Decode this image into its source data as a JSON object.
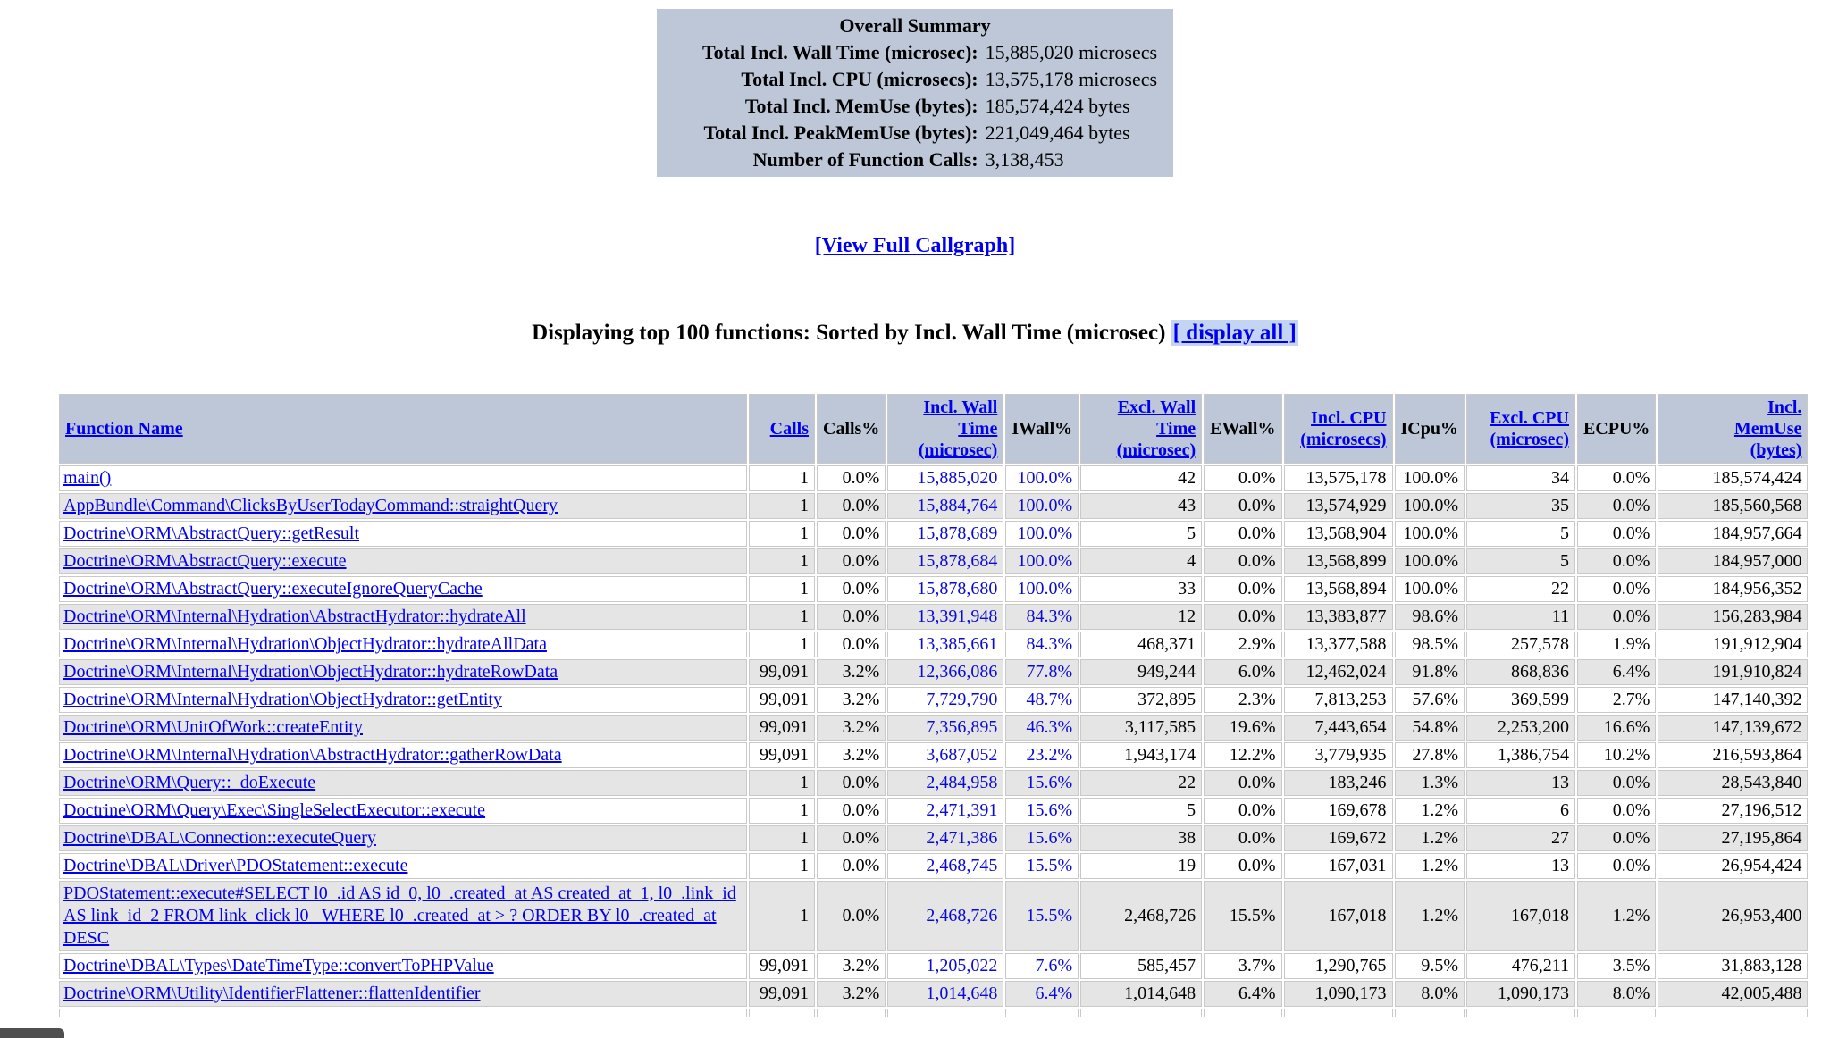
{
  "summary": {
    "title": "Overall Summary",
    "rows": [
      {
        "label": "Total Incl. Wall Time (microsec):",
        "value": "15,885,020 microsecs"
      },
      {
        "label": "Total Incl. CPU (microsecs):",
        "value": "13,575,178 microsecs"
      },
      {
        "label": "Total Incl. MemUse (bytes):",
        "value": "185,574,424 bytes"
      },
      {
        "label": "Total Incl. PeakMemUse (bytes):",
        "value": "221,049,464 bytes"
      },
      {
        "label": "Number of Function Calls:",
        "value": "3,138,453"
      }
    ]
  },
  "callgraph_link": "[View Full Callgraph]",
  "listing": {
    "heading": "Displaying top 100 functions: Sorted by Incl. Wall Time (microsec)",
    "display_all_label": "[ display all ]"
  },
  "table": {
    "columns": [
      {
        "label": "Function Name",
        "link": true,
        "align": "left",
        "sorted": false
      },
      {
        "label": "Calls",
        "link": true,
        "align": "right",
        "sorted": false
      },
      {
        "label": "Calls%",
        "link": false,
        "align": "right",
        "sorted": false
      },
      {
        "label": "Incl. Wall Time\n(microsec)",
        "link": true,
        "align": "right",
        "sorted": true
      },
      {
        "label": "IWall%",
        "link": false,
        "align": "right",
        "sorted": true
      },
      {
        "label": "Excl. Wall Time\n(microsec)",
        "link": true,
        "align": "right",
        "sorted": false
      },
      {
        "label": "EWall%",
        "link": false,
        "align": "right",
        "sorted": false
      },
      {
        "label": "Incl. CPU\n(microsecs)",
        "link": true,
        "align": "right",
        "sorted": false
      },
      {
        "label": "ICpu%",
        "link": false,
        "align": "right",
        "sorted": false
      },
      {
        "label": "Excl. CPU\n(microsec)",
        "link": true,
        "align": "right",
        "sorted": false
      },
      {
        "label": "ECPU%",
        "link": false,
        "align": "right",
        "sorted": false
      },
      {
        "label": "Incl.\nMemUse\n(bytes)",
        "link": true,
        "align": "right",
        "sorted": false
      }
    ],
    "rows": [
      {
        "function": "main()",
        "values": [
          "1",
          "0.0%",
          "15,885,020",
          "100.0%",
          "42",
          "0.0%",
          "13,575,178",
          "100.0%",
          "34",
          "0.0%",
          "185,574,424"
        ]
      },
      {
        "function": "AppBundle\\Command\\ClicksByUserTodayCommand::straightQuery",
        "values": [
          "1",
          "0.0%",
          "15,884,764",
          "100.0%",
          "43",
          "0.0%",
          "13,574,929",
          "100.0%",
          "35",
          "0.0%",
          "185,560,568"
        ]
      },
      {
        "function": "Doctrine\\ORM\\AbstractQuery::getResult",
        "values": [
          "1",
          "0.0%",
          "15,878,689",
          "100.0%",
          "5",
          "0.0%",
          "13,568,904",
          "100.0%",
          "5",
          "0.0%",
          "184,957,664"
        ]
      },
      {
        "function": "Doctrine\\ORM\\AbstractQuery::execute",
        "values": [
          "1",
          "0.0%",
          "15,878,684",
          "100.0%",
          "4",
          "0.0%",
          "13,568,899",
          "100.0%",
          "5",
          "0.0%",
          "184,957,000"
        ]
      },
      {
        "function": "Doctrine\\ORM\\AbstractQuery::executeIgnoreQueryCache",
        "values": [
          "1",
          "0.0%",
          "15,878,680",
          "100.0%",
          "33",
          "0.0%",
          "13,568,894",
          "100.0%",
          "22",
          "0.0%",
          "184,956,352"
        ]
      },
      {
        "function": "Doctrine\\ORM\\Internal\\Hydration\\AbstractHydrator::hydrateAll",
        "values": [
          "1",
          "0.0%",
          "13,391,948",
          "84.3%",
          "12",
          "0.0%",
          "13,383,877",
          "98.6%",
          "11",
          "0.0%",
          "156,283,984"
        ]
      },
      {
        "function": "Doctrine\\ORM\\Internal\\Hydration\\ObjectHydrator::hydrateAllData",
        "values": [
          "1",
          "0.0%",
          "13,385,661",
          "84.3%",
          "468,371",
          "2.9%",
          "13,377,588",
          "98.5%",
          "257,578",
          "1.9%",
          "191,912,904"
        ]
      },
      {
        "function": "Doctrine\\ORM\\Internal\\Hydration\\ObjectHydrator::hydrateRowData",
        "values": [
          "99,091",
          "3.2%",
          "12,366,086",
          "77.8%",
          "949,244",
          "6.0%",
          "12,462,024",
          "91.8%",
          "868,836",
          "6.4%",
          "191,910,824"
        ]
      },
      {
        "function": "Doctrine\\ORM\\Internal\\Hydration\\ObjectHydrator::getEntity",
        "values": [
          "99,091",
          "3.2%",
          "7,729,790",
          "48.7%",
          "372,895",
          "2.3%",
          "7,813,253",
          "57.6%",
          "369,599",
          "2.7%",
          "147,140,392"
        ]
      },
      {
        "function": "Doctrine\\ORM\\UnitOfWork::createEntity",
        "values": [
          "99,091",
          "3.2%",
          "7,356,895",
          "46.3%",
          "3,117,585",
          "19.6%",
          "7,443,654",
          "54.8%",
          "2,253,200",
          "16.6%",
          "147,139,672"
        ]
      },
      {
        "function": "Doctrine\\ORM\\Internal\\Hydration\\AbstractHydrator::gatherRowData",
        "values": [
          "99,091",
          "3.2%",
          "3,687,052",
          "23.2%",
          "1,943,174",
          "12.2%",
          "3,779,935",
          "27.8%",
          "1,386,754",
          "10.2%",
          "216,593,864"
        ]
      },
      {
        "function": "Doctrine\\ORM\\Query::_doExecute",
        "values": [
          "1",
          "0.0%",
          "2,484,958",
          "15.6%",
          "22",
          "0.0%",
          "183,246",
          "1.3%",
          "13",
          "0.0%",
          "28,543,840"
        ]
      },
      {
        "function": "Doctrine\\ORM\\Query\\Exec\\SingleSelectExecutor::execute",
        "values": [
          "1",
          "0.0%",
          "2,471,391",
          "15.6%",
          "5",
          "0.0%",
          "169,678",
          "1.2%",
          "6",
          "0.0%",
          "27,196,512"
        ]
      },
      {
        "function": "Doctrine\\DBAL\\Connection::executeQuery",
        "values": [
          "1",
          "0.0%",
          "2,471,386",
          "15.6%",
          "38",
          "0.0%",
          "169,672",
          "1.2%",
          "27",
          "0.0%",
          "27,195,864"
        ]
      },
      {
        "function": "Doctrine\\DBAL\\Driver\\PDOStatement::execute",
        "values": [
          "1",
          "0.0%",
          "2,468,745",
          "15.5%",
          "19",
          "0.0%",
          "167,031",
          "1.2%",
          "13",
          "0.0%",
          "26,954,424"
        ]
      },
      {
        "function": "PDOStatement::execute#SELECT l0_.id AS id_0, l0_.created_at AS created_at_1, l0_.link_id AS link_id_2 FROM link_click l0_  WHERE l0_.created_at > ? ORDER BY l0_.created_at DESC",
        "values": [
          "1",
          "0.0%",
          "2,468,726",
          "15.5%",
          "2,468,726",
          "15.5%",
          "167,018",
          "1.2%",
          "167,018",
          "1.2%",
          "26,953,400"
        ]
      },
      {
        "function": "Doctrine\\DBAL\\Types\\DateTimeType::convertToPHPValue",
        "values": [
          "99,091",
          "3.2%",
          "1,205,022",
          "7.6%",
          "585,457",
          "3.7%",
          "1,290,765",
          "9.5%",
          "476,211",
          "3.5%",
          "31,883,128"
        ]
      },
      {
        "function": "Doctrine\\ORM\\Utility\\IdentifierFlattener::flattenIdentifier",
        "values": [
          "99,091",
          "3.2%",
          "1,014,648",
          "6.4%",
          "1,014,648",
          "6.4%",
          "1,090,173",
          "8.0%",
          "1,090,173",
          "8.0%",
          "42,005,488"
        ]
      }
    ]
  },
  "colors": {
    "header_bg": "#bdc7d8",
    "summary_bg": "#bdc7d8",
    "row_alt_bg": "#e5e5e5",
    "link_blue": "#0000ee",
    "sorted_blue": "#0a0ad6",
    "display_all_highlight": "#c4d5f3"
  }
}
